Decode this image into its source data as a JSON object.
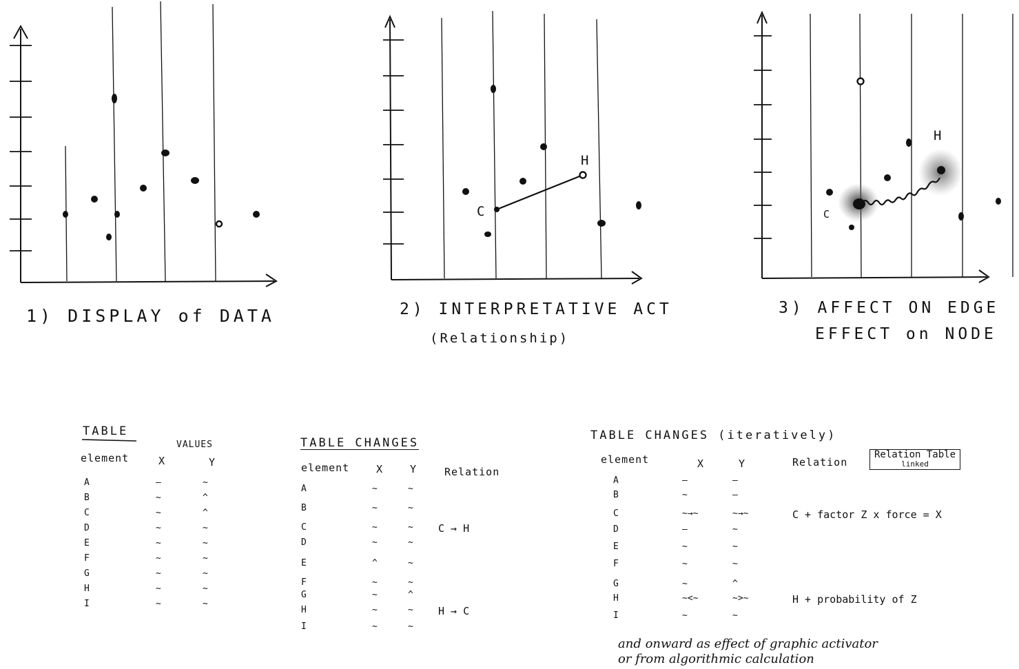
{
  "panels": [
    {
      "id": "panel-1",
      "caption": "1) DISPLAY of DATA",
      "subcaption": "",
      "points": [
        {
          "label": "",
          "kind": "dot"
        },
        {
          "label": "",
          "kind": "dot"
        },
        {
          "label": "",
          "kind": "dot"
        },
        {
          "label": "",
          "kind": "dot"
        },
        {
          "label": "",
          "kind": "dot"
        },
        {
          "label": "",
          "kind": "dot"
        },
        {
          "label": "",
          "kind": "dot"
        },
        {
          "label": "",
          "kind": "dot"
        },
        {
          "label": "",
          "kind": "open"
        },
        {
          "label": "",
          "kind": "dot"
        }
      ]
    },
    {
      "id": "panel-2",
      "caption": "2) INTERPRETATIVE ACT",
      "subcaption": "(Relationship)",
      "edge": {
        "from": "C",
        "to": "H"
      },
      "point_labels": {
        "C": "C",
        "H": "H"
      }
    },
    {
      "id": "panel-3",
      "caption": "3) AFFECT ON EDGE",
      "subcaption": "EFFECT on NODE",
      "edge": {
        "from": "C",
        "to": "H",
        "style": "wavy"
      },
      "point_labels": {
        "C": "C",
        "H": "H"
      }
    }
  ],
  "table1": {
    "title": "TABLE",
    "values_header": "VALUES",
    "columns": [
      "element",
      "X",
      "Y"
    ],
    "rows": [
      {
        "element": "A",
        "x": "–",
        "y": "~"
      },
      {
        "element": "B",
        "x": "~",
        "y": "^"
      },
      {
        "element": "C",
        "x": "~",
        "y": "^"
      },
      {
        "element": "D",
        "x": "~",
        "y": "~"
      },
      {
        "element": "E",
        "x": "~",
        "y": "~"
      },
      {
        "element": "F",
        "x": "~",
        "y": "~"
      },
      {
        "element": "G",
        "x": "~",
        "y": "~"
      },
      {
        "element": "H",
        "x": "~",
        "y": "~"
      },
      {
        "element": "I",
        "x": "~",
        "y": "~"
      }
    ]
  },
  "table2": {
    "title": "TABLE CHANGES",
    "columns": [
      "element",
      "X",
      "Y",
      "Relation"
    ],
    "rows": [
      {
        "element": "A",
        "x": "~",
        "y": "~",
        "relation": ""
      },
      {
        "element": "B",
        "x": "~",
        "y": "~",
        "relation": ""
      },
      {
        "element": "C",
        "x": "~",
        "y": "~",
        "relation": "C → H"
      },
      {
        "element": "D",
        "x": "~",
        "y": "~",
        "relation": ""
      },
      {
        "element": "E",
        "x": "^",
        "y": "~",
        "relation": ""
      },
      {
        "element": "F",
        "x": "~",
        "y": "~",
        "relation": ""
      },
      {
        "element": "G",
        "x": "~",
        "y": "^",
        "relation": ""
      },
      {
        "element": "H",
        "x": "~",
        "y": "~",
        "relation": "H → C"
      },
      {
        "element": "I",
        "x": "~",
        "y": "~",
        "relation": ""
      }
    ]
  },
  "table3": {
    "title": "TABLE CHANGES (iteratively)",
    "columns": [
      "element",
      "X",
      "Y",
      "Relation"
    ],
    "relation_table_label": "Relation Table",
    "relation_table_sublabel": "linked",
    "rows": [
      {
        "element": "A",
        "x": "–",
        "y": "–",
        "relation": ""
      },
      {
        "element": "B",
        "x": "~",
        "y": "–",
        "relation": ""
      },
      {
        "element": "C",
        "x": "~→~",
        "y": "~→~",
        "relation": "C + factor Z x force = X"
      },
      {
        "element": "D",
        "x": "–",
        "y": "~",
        "relation": ""
      },
      {
        "element": "E",
        "x": "~",
        "y": "~",
        "relation": ""
      },
      {
        "element": "F",
        "x": "~",
        "y": "~",
        "relation": ""
      },
      {
        "element": "G",
        "x": "~",
        "y": "^",
        "relation": ""
      },
      {
        "element": "H",
        "x": "~<~",
        "y": "~>~",
        "relation": "H + probability of Z"
      },
      {
        "element": "I",
        "x": "~",
        "y": "~",
        "relation": ""
      }
    ]
  },
  "footnote": {
    "line1": "and onward as effect of graphic activator",
    "line2": "or from algorithmic calculation"
  }
}
